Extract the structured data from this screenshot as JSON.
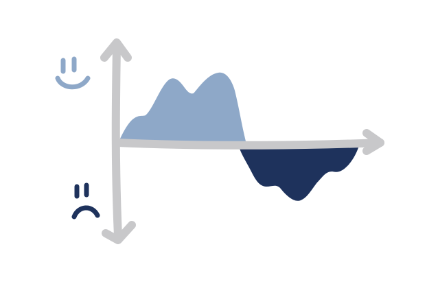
{
  "diagram": {
    "description_name": "mood-curve-sketch",
    "colors": {
      "background": "#ffffff",
      "axis": "#c8c8ca",
      "positive_area": "#8ea8c8",
      "negative_area": "#1e325c",
      "happy_face": "#8ea8c8",
      "sad_face": "#1e325c"
    },
    "icons": {
      "top": "happy-face-icon",
      "bottom": "sad-face-icon"
    }
  }
}
